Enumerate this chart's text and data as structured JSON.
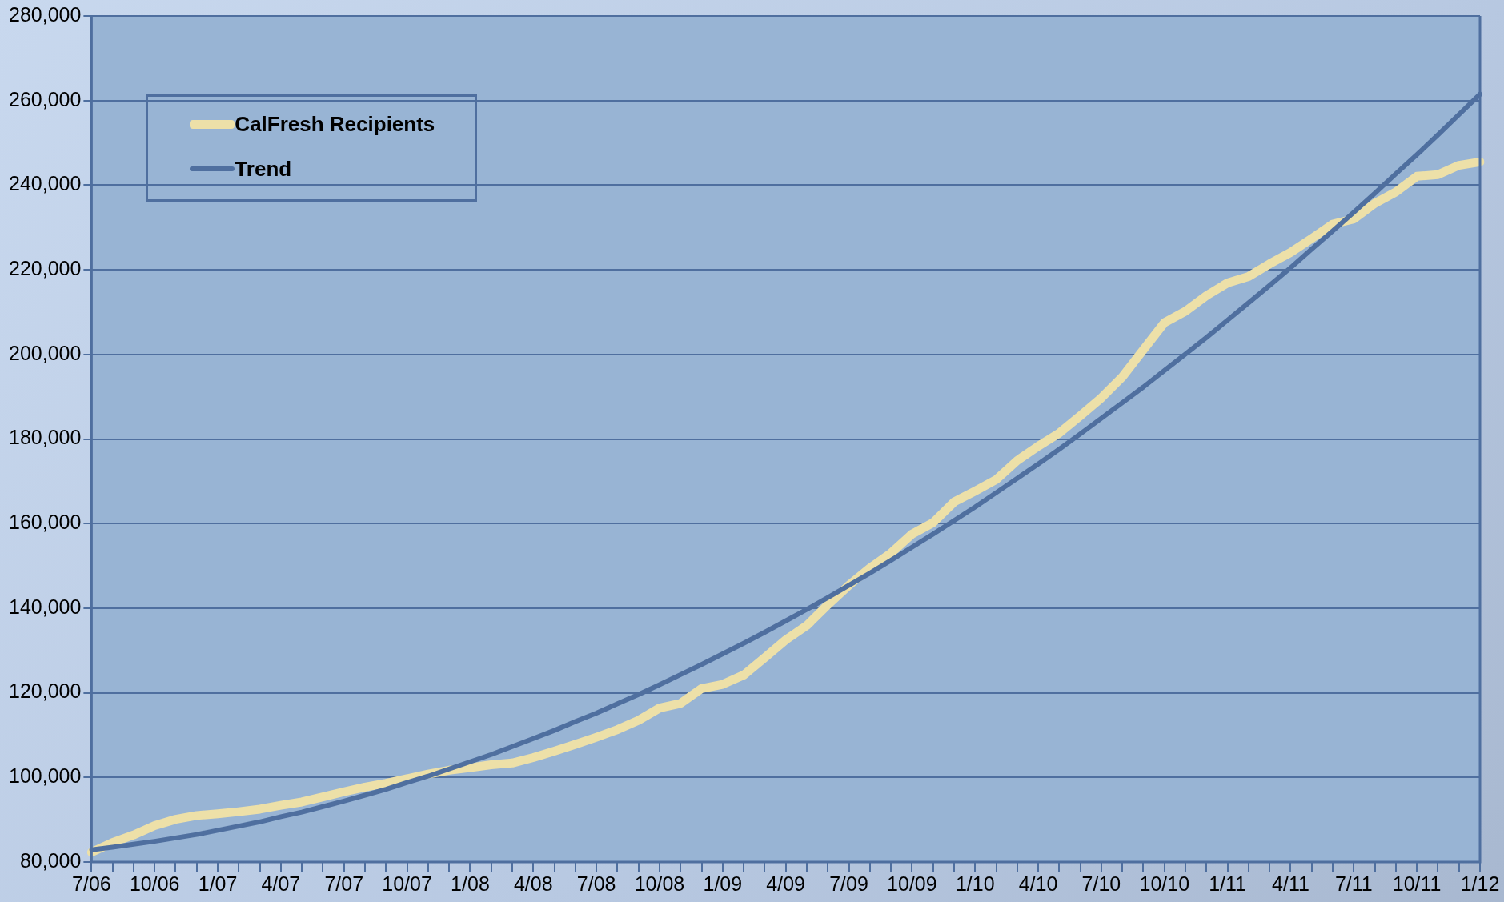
{
  "chart_data": {
    "type": "line",
    "categories": [
      "7/06",
      null,
      null,
      "10/06",
      null,
      null,
      "1/07",
      null,
      null,
      "4/07",
      null,
      null,
      "7/07",
      null,
      null,
      "10/07",
      null,
      null,
      "1/08",
      null,
      null,
      "4/08",
      null,
      null,
      "7/08",
      null,
      null,
      "10/08",
      null,
      null,
      "1/09",
      null,
      null,
      "4/09",
      null,
      null,
      "7/09",
      null,
      null,
      "10/09",
      null,
      null,
      "1/10",
      null,
      null,
      "4/10",
      null,
      null,
      "7/10",
      null,
      null,
      "10/10",
      null,
      null,
      "1/11",
      null,
      null,
      "4/11",
      null,
      null,
      "7/11",
      null,
      null,
      "10/11",
      null,
      null,
      "1/12"
    ],
    "series": [
      {
        "name": "CalFresh Recipients",
        "color": "#ede0a8",
        "values": [
          82300,
          84600,
          86400,
          88600,
          90100,
          91000,
          91400,
          91900,
          92500,
          93400,
          94200,
          95400,
          96600,
          97700,
          98600,
          99700,
          100800,
          101700,
          102300,
          103000,
          103400,
          104700,
          106200,
          107800,
          109500,
          111300,
          113500,
          116400,
          117500,
          121000,
          122000,
          124200,
          128300,
          132500,
          135900,
          140800,
          145400,
          149500,
          153000,
          157500,
          160200,
          165100,
          167700,
          170400,
          174900,
          178300,
          181400,
          185500,
          189700,
          194700,
          201100,
          207500,
          210200,
          213900,
          216900,
          218400,
          221400,
          224100,
          227400,
          230800,
          232000,
          235700,
          238400,
          242100,
          242500,
          244700,
          245500
        ]
      },
      {
        "name": "Trend",
        "color": "#4f6f9f",
        "values": [
          82900,
          83500,
          84200,
          84900,
          85700,
          86500,
          87500,
          88500,
          89500,
          90700,
          91800,
          93100,
          94400,
          95800,
          97200,
          98800,
          100300,
          102000,
          103700,
          105400,
          107300,
          109200,
          111100,
          113200,
          115200,
          117400,
          119600,
          121900,
          124300,
          126700,
          129200,
          131700,
          134300,
          137000,
          139700,
          142500,
          145400,
          148300,
          151300,
          154400,
          157500,
          160700,
          163900,
          167300,
          170700,
          174100,
          177600,
          181200,
          184900,
          188600,
          192300,
          196200,
          200100,
          204000,
          208100,
          212200,
          216300,
          220500,
          224900,
          229200,
          233600,
          238100,
          242700,
          247200,
          251900,
          256700,
          261500
        ]
      }
    ],
    "ylim": [
      80000,
      280000
    ],
    "yticks": [
      {
        "value": 80000,
        "label": "80,000"
      },
      {
        "value": 100000,
        "label": "100,000"
      },
      {
        "value": 120000,
        "label": "120,000"
      },
      {
        "value": 140000,
        "label": "140,000"
      },
      {
        "value": 160000,
        "label": "160,000"
      },
      {
        "value": 180000,
        "label": "180,000"
      },
      {
        "value": 200000,
        "label": "200,000"
      },
      {
        "value": 220000,
        "label": "220,000"
      },
      {
        "value": 240000,
        "label": "240,000"
      },
      {
        "value": 260000,
        "label": "260,000"
      },
      {
        "value": 280000,
        "label": "280,000"
      }
    ],
    "grid": "y",
    "legend": "top left",
    "marker": "none",
    "line_style": "solid"
  }
}
